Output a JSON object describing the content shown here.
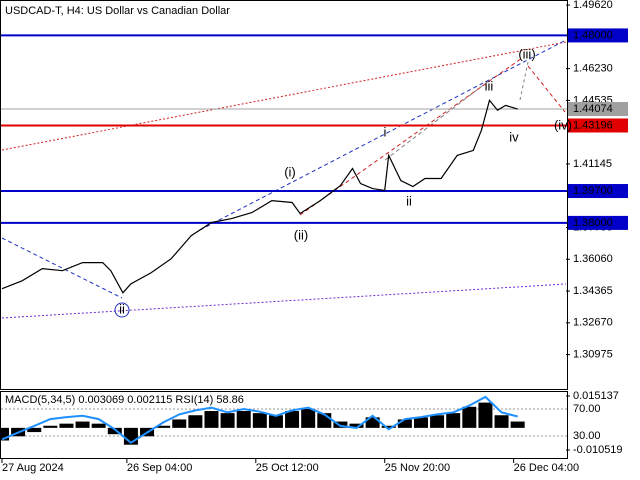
{
  "chart_data": [
    {
      "type": "line",
      "title": "USDCAD-T, H4:  US Dollar vs Canadian Dollar",
      "x": [
        0,
        5,
        10,
        15,
        20,
        25,
        27,
        30,
        32,
        37,
        42,
        47,
        52,
        57,
        62,
        67,
        72,
        74,
        79,
        84,
        87,
        89,
        92,
        95,
        96,
        99,
        102,
        105,
        109,
        113,
        117,
        119,
        121,
        123,
        125,
        128
      ],
      "series": [
        {
          "color": "#000000",
          "values": [
            1.3449,
            1.3491,
            1.3556,
            1.3545,
            1.3588,
            1.3588,
            1.3545,
            1.3427,
            1.3475,
            1.3534,
            1.3609,
            1.3732,
            1.3802,
            1.3823,
            1.3855,
            1.3919,
            1.3909,
            1.385,
            1.3919,
            1.3999,
            1.409,
            1.401,
            1.3983,
            1.3973,
            1.416,
            1.4026,
            1.3994,
            1.4037,
            1.4037,
            1.416,
            1.4187,
            1.4294,
            1.4454,
            1.4401,
            1.4427,
            1.4407
          ]
        }
      ],
      "xlim": [
        0,
        140
      ],
      "xticks": [
        {
          "value": 0,
          "label": "27 Aug 2024"
        },
        {
          "value": 31,
          "label": "26 Sep 04:00"
        },
        {
          "value": 63,
          "label": "25 Oct 12:00"
        },
        {
          "value": 95,
          "label": "25 Nov 20:00"
        },
        {
          "value": 127,
          "label": "26 Dec 04:00"
        }
      ],
      "ylim": [
        1.2914,
        1.4989
      ],
      "yticks": [
        {
          "value": 1.4962,
          "label": "1.49620"
        },
        {
          "value": 1.4623,
          "label": "1.46230"
        },
        {
          "value": 1.44535,
          "label": "1.44535"
        },
        {
          "value": 1.41145,
          "label": "1.41145"
        },
        {
          "value": 1.37755,
          "label": "1.37755"
        },
        {
          "value": 1.3606,
          "label": "1.36060"
        },
        {
          "value": 1.34365,
          "label": "1.34365"
        },
        {
          "value": 1.3267,
          "label": "1.32670"
        },
        {
          "value": 1.30975,
          "label": "1.30975"
        }
      ],
      "levels": [
        {
          "value": 1.48,
          "label": "1.48000",
          "color": "#0000c8"
        },
        {
          "value": 1.43196,
          "label": "1.43196",
          "color": "#e00000"
        },
        {
          "value": 1.397,
          "label": "1.39700",
          "color": "#0000c8"
        },
        {
          "value": 1.38,
          "label": "1.38000",
          "color": "#0000c8"
        }
      ],
      "current_price": {
        "value": 1.44074,
        "label": "1.44074",
        "color": "#a0a0a0"
      },
      "annotations": [
        {
          "text": "(i)",
          "color": "#d02020"
        },
        {
          "text": "(ii)",
          "color": "#d02020"
        },
        {
          "text": "(iii)",
          "color": "#d02020"
        },
        {
          "text": "(iv)",
          "color": "#d02020"
        },
        {
          "text": "ii",
          "color": "#2030c0",
          "circled": true
        },
        {
          "text": "i",
          "color": "#707070"
        },
        {
          "text": "ii",
          "color": "#707070"
        },
        {
          "text": "iii",
          "color": "#707070"
        },
        {
          "text": "iv",
          "color": "#707070"
        }
      ]
    },
    {
      "type": "bar",
      "title": "MACD(5,34,5) 0.003069 0.002115 RSI(14) 58.86",
      "x": [
        0,
        4,
        8,
        12,
        16,
        20,
        24,
        28,
        32,
        36,
        40,
        44,
        48,
        52,
        56,
        60,
        64,
        68,
        72,
        76,
        80,
        84,
        88,
        92,
        96,
        100,
        104,
        108,
        112,
        116,
        120,
        124,
        128
      ],
      "xlim": [
        0,
        140
      ],
      "series": [
        {
          "color": "#000000",
          "values": [
            -0.006,
            -0.004,
            -0.002,
            0.001,
            0.002,
            0.003,
            0.002,
            -0.003,
            -0.008,
            -0.004,
            0.001,
            0.004,
            0.006,
            0.008,
            0.007,
            0.008,
            0.007,
            0.006,
            0.008,
            0.009,
            0.007,
            0.003,
            0.002,
            0.005,
            0.001,
            0.004,
            0.005,
            0.006,
            0.007,
            0.01,
            0.012,
            0.006,
            0.003
          ]
        },
        {
          "type": "line",
          "axis": "y2",
          "color": "#1e90ff",
          "values": [
            25,
            35,
            45,
            55,
            58,
            60,
            55,
            40,
            20,
            35,
            50,
            62,
            68,
            72,
            65,
            70,
            66,
            60,
            68,
            72,
            62,
            45,
            42,
            60,
            40,
            55,
            58,
            62,
            65,
            75,
            88,
            65,
            58.86
          ]
        }
      ],
      "ylim": [
        -0.01432,
        0.01704
      ],
      "yticks": [
        0.015137,
        -0.010519
      ],
      "y2lim": [
        -2.6,
        95.2
      ],
      "y2ticks": [
        {
          "value": 70,
          "label": "70.00"
        },
        {
          "value": 30,
          "label": "30.00"
        }
      ]
    }
  ]
}
